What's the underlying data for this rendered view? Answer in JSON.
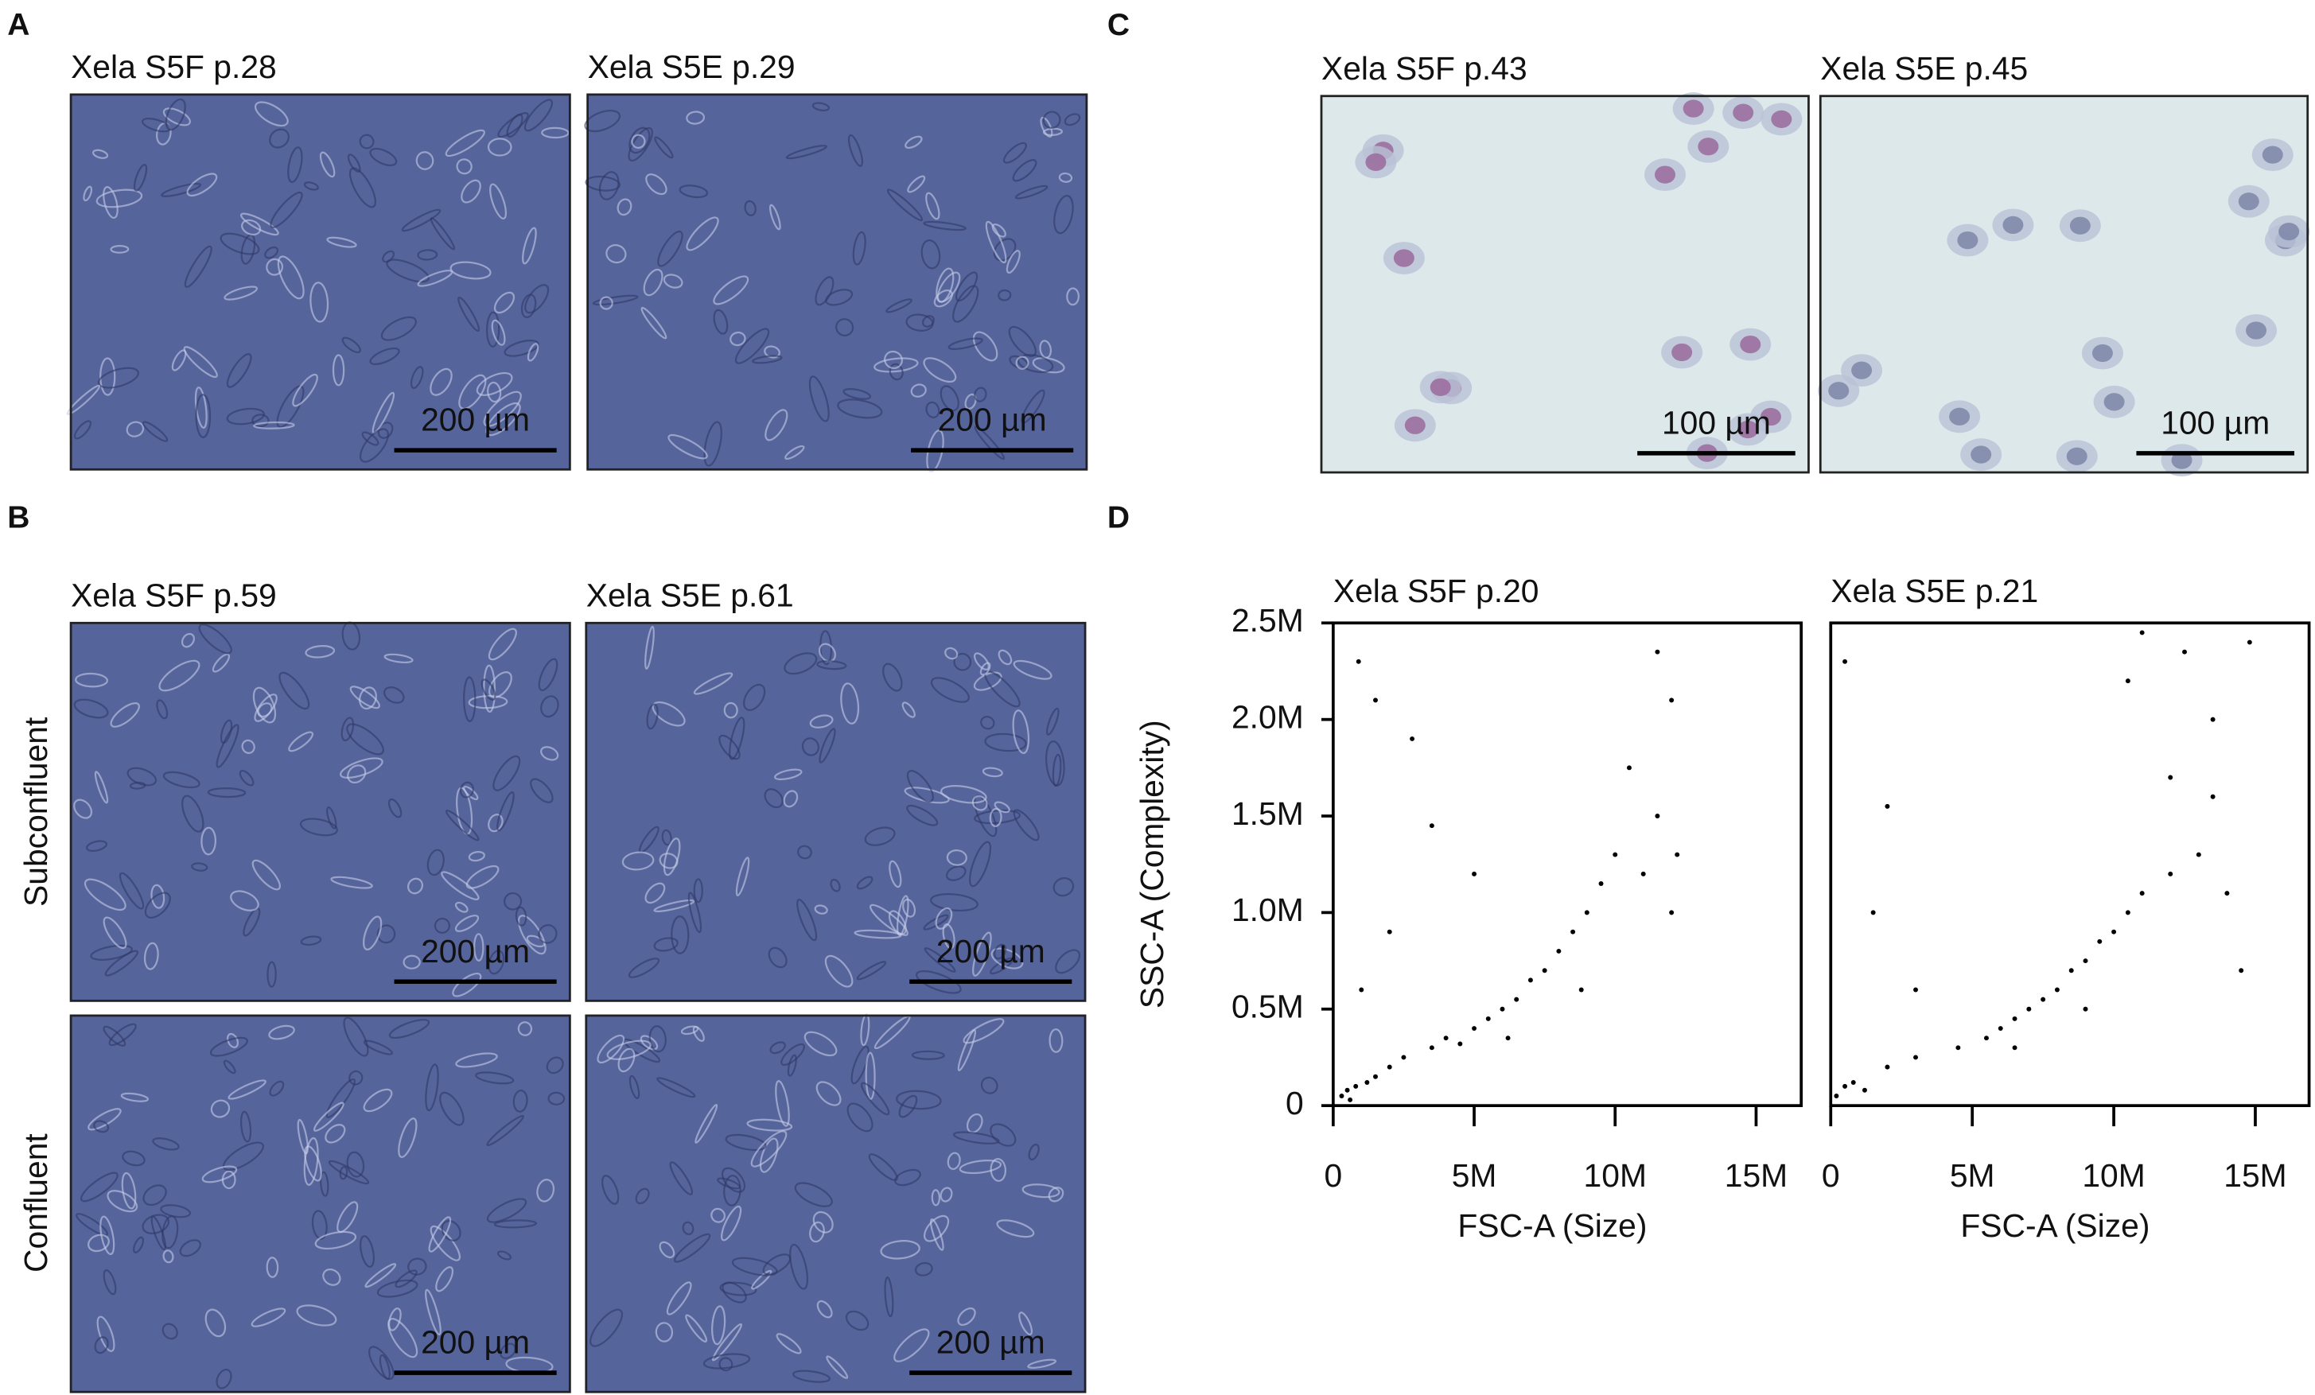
{
  "panels": [
    {
      "label": "A",
      "images": [
        {
          "caption": "Xela S5F p.28",
          "scale_bar": "200 µm"
        },
        {
          "caption": "Xela S5E p.29",
          "scale_bar": "200 µm"
        }
      ]
    },
    {
      "label": "B",
      "row_labels": [
        "Subconfluent",
        "Confluent"
      ],
      "images": [
        {
          "caption": "Xela S5F p.59",
          "scale_bar": "200 µm"
        },
        {
          "caption": "Xela S5E p.61",
          "scale_bar": "200 µm"
        },
        {
          "scale_bar": "200 µm"
        },
        {
          "scale_bar": "200 µm"
        }
      ]
    },
    {
      "label": "C",
      "images": [
        {
          "caption": "Xela S5F p.43",
          "scale_bar": "100 µm"
        },
        {
          "caption": "Xela S5E p.45",
          "scale_bar": "100 µm"
        }
      ]
    },
    {
      "label": "D"
    }
  ],
  "chart_data": [
    {
      "type": "scatter",
      "title": "Xela S5F p.20",
      "xlabel": "FSC-A (Size)",
      "ylabel": "SSC-A (Complexity)",
      "color": "#000000",
      "xlim": [
        0,
        16600000
      ],
      "ylim": [
        0,
        2500000
      ],
      "xticks": [
        0,
        {
          "value": 5000000,
          "label": "5M"
        },
        {
          "value": 10000000,
          "label": "10M"
        },
        {
          "value": 15000000,
          "label": "15M"
        }
      ],
      "yticks": [
        0,
        {
          "value": 500000,
          "label": "0.5M"
        },
        {
          "value": 1000000,
          "label": "1.0M"
        },
        {
          "value": 1500000,
          "label": "1.5M"
        },
        {
          "value": 2000000,
          "label": "2.0M"
        },
        {
          "value": 2500000,
          "label": "2.5M"
        }
      ],
      "x": [
        300000,
        500000,
        800000,
        1200000,
        1500000,
        600000,
        2000000,
        2500000,
        3500000,
        4000000,
        4500000,
        5000000,
        5500000,
        6000000,
        6500000,
        7000000,
        7500000,
        8000000,
        8500000,
        9000000,
        9500000,
        10000000,
        11000000,
        11500000,
        12000000,
        12200000,
        1500000,
        2800000,
        11500000,
        12000000,
        3500000,
        1000000,
        2000000,
        6200000,
        8800000,
        10500000,
        900000,
        5000000
      ],
      "y": [
        50000,
        80000,
        100000,
        120000,
        150000,
        30000,
        200000,
        250000,
        300000,
        350000,
        320000,
        400000,
        450000,
        500000,
        550000,
        650000,
        700000,
        800000,
        900000,
        1000000,
        1150000,
        1300000,
        1200000,
        1500000,
        1000000,
        1300000,
        2100000,
        1900000,
        2350000,
        2100000,
        1450000,
        600000,
        900000,
        350000,
        600000,
        1750000,
        2300000,
        1200000
      ]
    },
    {
      "type": "scatter",
      "title": "Xela S5E p.21",
      "xlabel": "FSC-A (Size)",
      "color": "#000000",
      "xlim": [
        0,
        16900000
      ],
      "ylim": [
        0,
        2500000
      ],
      "xticks": [
        0,
        {
          "value": 5000000,
          "label": "5M"
        },
        {
          "value": 10000000,
          "label": "10M"
        },
        {
          "value": 15000000,
          "label": "15M"
        }
      ],
      "x": [
        200000,
        500000,
        800000,
        1200000,
        2000000,
        3000000,
        4500000,
        5500000,
        6000000,
        6500000,
        7000000,
        7500000,
        8000000,
        8500000,
        9000000,
        9500000,
        10000000,
        10500000,
        11000000,
        12000000,
        13000000,
        14000000,
        14500000,
        13500000,
        11000000,
        12500000,
        14800000,
        10500000,
        2000000,
        1500000,
        3000000,
        500000,
        12000000,
        13500000,
        6500000,
        9000000
      ],
      "y": [
        50000,
        100000,
        120000,
        80000,
        200000,
        250000,
        300000,
        350000,
        400000,
        450000,
        500000,
        550000,
        600000,
        700000,
        750000,
        850000,
        900000,
        1000000,
        1100000,
        1200000,
        1300000,
        1100000,
        700000,
        1600000,
        2450000,
        2350000,
        2400000,
        2200000,
        1550000,
        1000000,
        600000,
        2300000,
        1700000,
        2000000,
        300000,
        500000
      ]
    }
  ]
}
